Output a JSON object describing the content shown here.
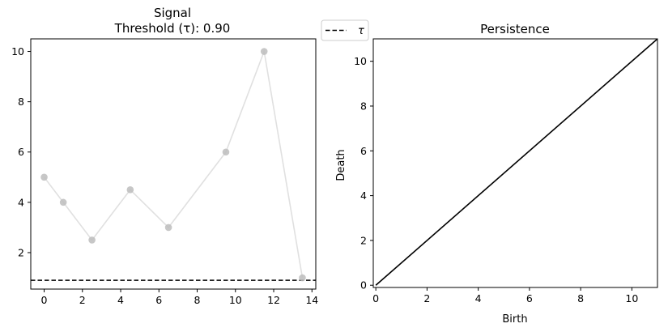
{
  "figure": {
    "background": "#ffffff"
  },
  "chart_data": [
    {
      "type": "line",
      "title": "Signal",
      "subtitle": "Threshold (τ): 0.90",
      "xlabel": "",
      "ylabel": "",
      "xlim": [
        -0.7,
        14.2
      ],
      "ylim": [
        0.55,
        10.5
      ],
      "xticks": [
        "0",
        "2",
        "4",
        "6",
        "8",
        "10",
        "12",
        "14"
      ],
      "yticks": [
        "2",
        "4",
        "6",
        "8",
        "10"
      ],
      "x": [
        0,
        1,
        2.5,
        4.5,
        6.5,
        9.5,
        11.5,
        13.5
      ],
      "series": [
        {
          "values": [
            5,
            4,
            2.5,
            4.5,
            3,
            6,
            10,
            1
          ],
          "line_color": "#e0e0e0",
          "marker_color": "#bdbdbd"
        }
      ],
      "threshold": {
        "value": 0.9,
        "label": "τ",
        "style": "dashed",
        "color": "#000000"
      },
      "legend": {
        "entries": [
          "τ"
        ],
        "placement": "outside-top-right"
      },
      "grid": false
    },
    {
      "type": "line",
      "title": "Persistence",
      "xlabel": "Birth",
      "ylabel": "Death",
      "xlim": [
        -0.1,
        11
      ],
      "ylim": [
        -0.1,
        11
      ],
      "xticks": [
        "0",
        "2",
        "4",
        "6",
        "8",
        "10"
      ],
      "yticks": [
        "0",
        "2",
        "4",
        "6",
        "8",
        "10"
      ],
      "diagonal": {
        "from": [
          0,
          0
        ],
        "to": [
          11,
          11
        ],
        "color": "#000000"
      },
      "points": [],
      "grid": false
    }
  ]
}
